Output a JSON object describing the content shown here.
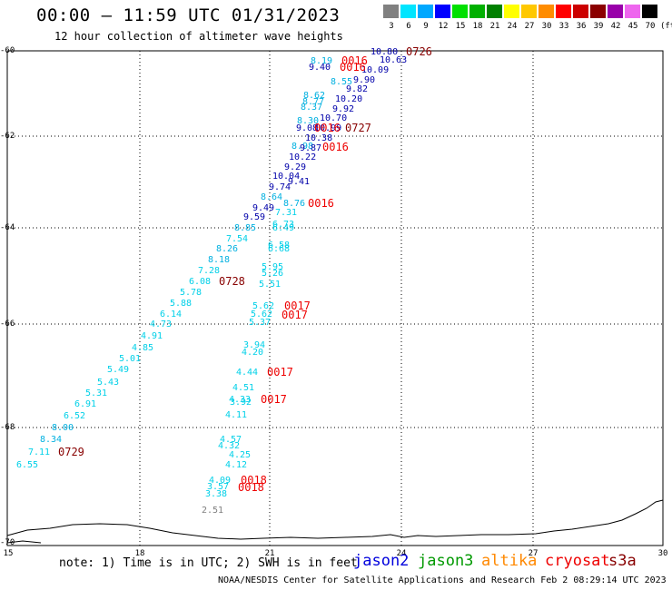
{
  "header": {
    "title": "00:00 – 11:59 UTC 01/31/2023",
    "subtitle": "12 hour collection of altimeter wave heights"
  },
  "color_scale": {
    "unit": "(ft)",
    "items": [
      {
        "label": "3",
        "color": "#808080"
      },
      {
        "label": "6",
        "color": "#00e5ff"
      },
      {
        "label": "9",
        "color": "#00a8ff"
      },
      {
        "label": "12",
        "color": "#0000ff"
      },
      {
        "label": "15",
        "color": "#00e000"
      },
      {
        "label": "18",
        "color": "#00b000"
      },
      {
        "label": "21",
        "color": "#008000"
      },
      {
        "label": "24",
        "color": "#ffff00"
      },
      {
        "label": "27",
        "color": "#ffc800"
      },
      {
        "label": "30",
        "color": "#ff8c00"
      },
      {
        "label": "33",
        "color": "#ff0000"
      },
      {
        "label": "36",
        "color": "#cc0000"
      },
      {
        "label": "39",
        "color": "#8b0000"
      },
      {
        "label": "42",
        "color": "#9900aa"
      },
      {
        "label": "45",
        "color": "#ee66ee"
      },
      {
        "label": "70",
        "color": "#000000"
      }
    ]
  },
  "axes": {
    "y_labels": [
      "-60",
      "-62",
      "-64",
      "-66",
      "-68",
      "-70"
    ],
    "x_labels": [
      "15",
      "18",
      "21",
      "24",
      "27",
      "30"
    ]
  },
  "footer": {
    "note": "note: 1) Time is in UTC; 2) SWH is in feet",
    "legend": [
      {
        "name": "jason2",
        "color": "#0000dd"
      },
      {
        "name": "jason3",
        "color": "#009900"
      },
      {
        "name": "altika",
        "color": "#ff8800"
      },
      {
        "name": "cryosat",
        "color": "#ee0000"
      },
      {
        "name": "s3a",
        "color": "#880000"
      }
    ],
    "credit": "NOAA/NESDIS Center for Satellite Applications and Research   Feb  2 08:29:14 UTC 2023"
  },
  "observations": [
    {
      "v": "10.80",
      "c": "#0000aa"
    },
    {
      "v": "10.63",
      "c": "#0000aa"
    },
    {
      "v": "8.19",
      "c": "#00b0e0"
    },
    {
      "v": "9.40",
      "c": "#0000aa"
    },
    {
      "v": "10.09",
      "c": "#0000aa"
    },
    {
      "v": "8.55",
      "c": "#00b0e0"
    },
    {
      "v": "9.90",
      "c": "#0000aa"
    },
    {
      "v": "9.82",
      "c": "#0000aa"
    },
    {
      "v": "8.62",
      "c": "#00b0e0"
    },
    {
      "v": "8.77",
      "c": "#00b0e0"
    },
    {
      "v": "10.20",
      "c": "#0000aa"
    },
    {
      "v": "8.37",
      "c": "#00b0e0"
    },
    {
      "v": "9.92",
      "c": "#0000aa"
    },
    {
      "v": "10.70",
      "c": "#0000aa"
    },
    {
      "v": "8.30",
      "c": "#00b0e0"
    },
    {
      "v": "9.08",
      "c": "#0000aa"
    },
    {
      "v": "10.99",
      "c": "#0000aa"
    },
    {
      "v": "10.38",
      "c": "#0000aa"
    },
    {
      "v": "8.98",
      "c": "#00b0e0"
    },
    {
      "v": "9.87",
      "c": "#0000aa"
    },
    {
      "v": "10.22",
      "c": "#0000aa"
    },
    {
      "v": "9.29",
      "c": "#0000aa"
    },
    {
      "v": "10.04",
      "c": "#0000aa"
    },
    {
      "v": "9.41",
      "c": "#0000aa"
    },
    {
      "v": "9.74",
      "c": "#0000aa"
    },
    {
      "v": "8.64",
      "c": "#00b0e0"
    },
    {
      "v": "8.76",
      "c": "#00b0e0"
    },
    {
      "v": "9.49",
      "c": "#0000aa"
    },
    {
      "v": "7.31",
      "c": "#00d0e8"
    },
    {
      "v": "9.59",
      "c": "#0000aa"
    },
    {
      "v": "8.85",
      "c": "#00b0e0"
    },
    {
      "v": "6.73",
      "c": "#00d0e8"
    },
    {
      "v": "6.49",
      "c": "#00d0e8"
    },
    {
      "v": "7.54",
      "c": "#00d0e8"
    },
    {
      "v": "6.58",
      "c": "#00d0e8"
    },
    {
      "v": "8.26",
      "c": "#00b0e0"
    },
    {
      "v": "6.68",
      "c": "#00d0e8"
    },
    {
      "v": "8.18",
      "c": "#00b0e0"
    },
    {
      "v": "5.95",
      "c": "#00d0e8"
    },
    {
      "v": "7.28",
      "c": "#00d0e8"
    },
    {
      "v": "5.26",
      "c": "#00d0e8"
    },
    {
      "v": "6.08",
      "c": "#00d0e8"
    },
    {
      "v": "5.51",
      "c": "#00d0e8"
    },
    {
      "v": "5.78",
      "c": "#00d0e8"
    },
    {
      "v": "5.88",
      "c": "#00d0e8"
    },
    {
      "v": "5.62",
      "c": "#00d0e8"
    },
    {
      "v": "6.14",
      "c": "#00d0e8"
    },
    {
      "v": "5.62",
      "c": "#00d0e8"
    },
    {
      "v": "5.37",
      "c": "#00d0e8"
    },
    {
      "v": "4.73",
      "c": "#00d0e8"
    },
    {
      "v": "4.91",
      "c": "#00d0e8"
    },
    {
      "v": "4.85",
      "c": "#00d0e8"
    },
    {
      "v": "3.94",
      "c": "#00d0e8"
    },
    {
      "v": "4.20",
      "c": "#00d0e8"
    },
    {
      "v": "5.01",
      "c": "#00d0e8"
    },
    {
      "v": "5.49",
      "c": "#00d0e8"
    },
    {
      "v": "4.44",
      "c": "#00d0e8"
    },
    {
      "v": "5.43",
      "c": "#00d0e8"
    },
    {
      "v": "4.51",
      "c": "#00d0e8"
    },
    {
      "v": "5.31",
      "c": "#00d0e8"
    },
    {
      "v": "4.33",
      "c": "#00d0e8"
    },
    {
      "v": "3.92",
      "c": "#00d0e8"
    },
    {
      "v": "6.91",
      "c": "#00d0e8"
    },
    {
      "v": "6.52",
      "c": "#00d0e8"
    },
    {
      "v": "4.11",
      "c": "#00d0e8"
    },
    {
      "v": "8.00",
      "c": "#00b0e0"
    },
    {
      "v": "4.57",
      "c": "#00d0e8"
    },
    {
      "v": "8.34",
      "c": "#00b0e0"
    },
    {
      "v": "4.32",
      "c": "#00d0e8"
    },
    {
      "v": "7.11",
      "c": "#00d0e8"
    },
    {
      "v": "4.25",
      "c": "#00d0e8"
    },
    {
      "v": "6.55",
      "c": "#00d0e8"
    },
    {
      "v": "4.12",
      "c": "#00d0e8"
    },
    {
      "v": "4.09",
      "c": "#00d0e8"
    },
    {
      "v": "3.57",
      "c": "#00d0e8"
    },
    {
      "v": "3.38",
      "c": "#00d0e8"
    },
    {
      "v": "2.51",
      "c": "#808080"
    }
  ],
  "time_labels": [
    {
      "t": "0726",
      "c": "#880000"
    },
    {
      "t": "0016",
      "c": "#ee0000"
    },
    {
      "t": "0016",
      "c": "#ee0000"
    },
    {
      "t": "0016",
      "c": "#ee0000"
    },
    {
      "t": "0727",
      "c": "#880000"
    },
    {
      "t": "0016",
      "c": "#ee0000"
    },
    {
      "t": "0016",
      "c": "#ee0000"
    },
    {
      "t": "0728",
      "c": "#880000"
    },
    {
      "t": "0017",
      "c": "#ee0000"
    },
    {
      "t": "0017",
      "c": "#ee0000"
    },
    {
      "t": "0017",
      "c": "#ee0000"
    },
    {
      "t": "0017",
      "c": "#ee0000"
    },
    {
      "t": "0729",
      "c": "#880000"
    },
    {
      "t": "0018",
      "c": "#ee0000"
    },
    {
      "t": "0018",
      "c": "#ee0000"
    }
  ]
}
